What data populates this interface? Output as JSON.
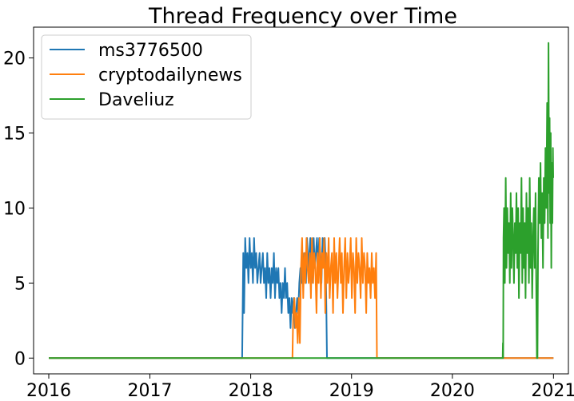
{
  "chart_data": {
    "type": "line",
    "title": "Thread Frequency over Time",
    "xlabel": "",
    "ylabel": "",
    "xlim": [
      "2015-11-07",
      "2021-02-24"
    ],
    "ylim": [
      -1.05,
      22.05
    ],
    "x_ticks": [
      "2016",
      "2017",
      "2018",
      "2019",
      "2020",
      "2021"
    ],
    "y_ticks": [
      "0",
      "5",
      "10",
      "15",
      "20"
    ],
    "grid": false,
    "legend_position": "top-left",
    "series": [
      {
        "name": "ms3776500",
        "color": "#1f77b4",
        "points": [
          [
            "2016-01-01",
            0
          ],
          [
            "2017-12-01",
            0
          ],
          [
            "2017-12-05",
            7
          ],
          [
            "2017-12-08",
            3
          ],
          [
            "2017-12-12",
            8
          ],
          [
            "2017-12-16",
            6
          ],
          [
            "2017-12-20",
            7
          ],
          [
            "2017-12-24",
            5
          ],
          [
            "2017-12-28",
            8
          ],
          [
            "2018-01-01",
            6
          ],
          [
            "2018-01-05",
            7
          ],
          [
            "2018-01-09",
            5
          ],
          [
            "2018-01-13",
            8
          ],
          [
            "2018-01-17",
            6
          ],
          [
            "2018-01-21",
            7
          ],
          [
            "2018-01-25",
            5
          ],
          [
            "2018-01-29",
            6
          ],
          [
            "2018-02-02",
            7
          ],
          [
            "2018-02-06",
            5
          ],
          [
            "2018-02-10",
            6
          ],
          [
            "2018-02-14",
            7
          ],
          [
            "2018-02-18",
            5
          ],
          [
            "2018-02-22",
            6
          ],
          [
            "2018-02-26",
            4
          ],
          [
            "2018-03-02",
            7
          ],
          [
            "2018-03-06",
            5
          ],
          [
            "2018-03-10",
            6
          ],
          [
            "2018-03-14",
            4
          ],
          [
            "2018-03-18",
            6
          ],
          [
            "2018-03-22",
            5
          ],
          [
            "2018-03-26",
            7
          ],
          [
            "2018-03-30",
            4
          ],
          [
            "2018-04-03",
            6
          ],
          [
            "2018-04-07",
            5
          ],
          [
            "2018-04-11",
            6
          ],
          [
            "2018-04-15",
            4
          ],
          [
            "2018-04-19",
            5
          ],
          [
            "2018-04-23",
            3
          ],
          [
            "2018-04-27",
            5
          ],
          [
            "2018-05-01",
            4
          ],
          [
            "2018-05-05",
            6
          ],
          [
            "2018-05-09",
            4
          ],
          [
            "2018-05-13",
            5
          ],
          [
            "2018-05-17",
            3
          ],
          [
            "2018-05-21",
            4
          ],
          [
            "2018-05-25",
            2
          ],
          [
            "2018-05-29",
            4
          ],
          [
            "2018-06-02",
            3
          ],
          [
            "2018-06-06",
            4
          ],
          [
            "2018-06-10",
            2
          ],
          [
            "2018-06-14",
            3
          ],
          [
            "2018-06-18",
            4
          ],
          [
            "2018-06-22",
            3
          ],
          [
            "2018-06-26",
            5
          ],
          [
            "2018-06-30",
            6
          ],
          [
            "2018-07-04",
            5
          ],
          [
            "2018-07-08",
            7
          ],
          [
            "2018-07-12",
            6
          ],
          [
            "2018-07-16",
            7
          ],
          [
            "2018-07-20",
            5
          ],
          [
            "2018-07-24",
            8
          ],
          [
            "2018-07-28",
            6
          ],
          [
            "2018-08-01",
            7
          ],
          [
            "2018-08-05",
            8
          ],
          [
            "2018-08-09",
            5
          ],
          [
            "2018-08-13",
            7
          ],
          [
            "2018-08-17",
            8
          ],
          [
            "2018-08-21",
            6
          ],
          [
            "2018-08-25",
            7
          ],
          [
            "2018-08-29",
            8
          ],
          [
            "2018-09-02",
            6
          ],
          [
            "2018-09-06",
            8
          ],
          [
            "2018-09-10",
            7
          ],
          [
            "2018-09-14",
            5
          ],
          [
            "2018-09-18",
            8
          ],
          [
            "2018-09-22",
            7
          ],
          [
            "2018-09-26",
            8
          ],
          [
            "2018-09-30",
            6
          ],
          [
            "2018-10-04",
            0
          ],
          [
            "2021-01-01",
            0
          ]
        ]
      },
      {
        "name": "cryptodailynews",
        "color": "#ff7f0e",
        "points": [
          [
            "2016-01-01",
            0
          ],
          [
            "2018-06-01",
            0
          ],
          [
            "2018-06-04",
            3
          ],
          [
            "2018-06-08",
            4
          ],
          [
            "2018-06-12",
            2
          ],
          [
            "2018-06-16",
            3
          ],
          [
            "2018-06-20",
            1
          ],
          [
            "2018-06-24",
            4
          ],
          [
            "2018-06-28",
            1
          ],
          [
            "2018-07-02",
            6
          ],
          [
            "2018-07-06",
            8
          ],
          [
            "2018-07-10",
            4
          ],
          [
            "2018-07-14",
            7
          ],
          [
            "2018-07-18",
            5
          ],
          [
            "2018-07-22",
            8
          ],
          [
            "2018-07-26",
            6
          ],
          [
            "2018-07-30",
            5
          ],
          [
            "2018-08-03",
            7
          ],
          [
            "2018-08-07",
            4
          ],
          [
            "2018-08-11",
            8
          ],
          [
            "2018-08-15",
            5
          ],
          [
            "2018-08-19",
            7
          ],
          [
            "2018-08-23",
            6
          ],
          [
            "2018-08-27",
            3
          ],
          [
            "2018-08-31",
            7
          ],
          [
            "2018-09-04",
            5
          ],
          [
            "2018-09-08",
            8
          ],
          [
            "2018-09-12",
            4
          ],
          [
            "2018-09-16",
            7
          ],
          [
            "2018-09-20",
            6
          ],
          [
            "2018-09-24",
            8
          ],
          [
            "2018-09-28",
            3
          ],
          [
            "2018-10-02",
            7
          ],
          [
            "2018-10-06",
            5
          ],
          [
            "2018-10-10",
            8
          ],
          [
            "2018-10-14",
            4
          ],
          [
            "2018-10-18",
            6
          ],
          [
            "2018-10-22",
            7
          ],
          [
            "2018-10-26",
            3
          ],
          [
            "2018-10-30",
            8
          ],
          [
            "2018-11-03",
            5
          ],
          [
            "2018-11-07",
            7
          ],
          [
            "2018-11-11",
            4
          ],
          [
            "2018-11-15",
            6
          ],
          [
            "2018-11-19",
            8
          ],
          [
            "2018-11-23",
            5
          ],
          [
            "2018-11-27",
            7
          ],
          [
            "2018-12-01",
            3
          ],
          [
            "2018-12-05",
            6
          ],
          [
            "2018-12-09",
            8
          ],
          [
            "2018-12-13",
            4
          ],
          [
            "2018-12-17",
            7
          ],
          [
            "2018-12-21",
            5
          ],
          [
            "2018-12-25",
            6
          ],
          [
            "2018-12-29",
            8
          ],
          [
            "2019-01-02",
            4
          ],
          [
            "2019-01-06",
            7
          ],
          [
            "2019-01-10",
            6
          ],
          [
            "2019-01-14",
            3
          ],
          [
            "2019-01-18",
            8
          ],
          [
            "2019-01-22",
            5
          ],
          [
            "2019-01-26",
            7
          ],
          [
            "2019-01-30",
            6
          ],
          [
            "2019-02-03",
            4
          ],
          [
            "2019-02-07",
            8
          ],
          [
            "2019-02-11",
            5
          ],
          [
            "2019-02-15",
            7
          ],
          [
            "2019-02-19",
            6
          ],
          [
            "2019-02-23",
            3
          ],
          [
            "2019-02-27",
            7
          ],
          [
            "2019-03-03",
            5
          ],
          [
            "2019-03-07",
            6
          ],
          [
            "2019-03-11",
            4
          ],
          [
            "2019-03-15",
            7
          ],
          [
            "2019-03-19",
            5
          ],
          [
            "2019-03-23",
            6
          ],
          [
            "2019-03-27",
            4
          ],
          [
            "2019-03-31",
            7
          ],
          [
            "2019-04-03",
            0
          ],
          [
            "2021-01-01",
            0
          ]
        ]
      },
      {
        "name": "Daveliuz",
        "color": "#2ca02c",
        "points": [
          [
            "2016-01-01",
            0
          ],
          [
            "2020-07-01",
            0
          ],
          [
            "2020-07-02",
            1
          ],
          [
            "2020-07-03",
            0
          ],
          [
            "2020-07-04",
            8
          ],
          [
            "2020-07-06",
            10
          ],
          [
            "2020-07-09",
            5
          ],
          [
            "2020-07-12",
            12
          ],
          [
            "2020-07-15",
            6
          ],
          [
            "2020-07-18",
            10
          ],
          [
            "2020-07-21",
            7
          ],
          [
            "2020-07-24",
            9
          ],
          [
            "2020-07-27",
            5
          ],
          [
            "2020-07-30",
            11
          ],
          [
            "2020-08-02",
            6
          ],
          [
            "2020-08-05",
            10
          ],
          [
            "2020-08-08",
            8
          ],
          [
            "2020-08-11",
            5
          ],
          [
            "2020-08-14",
            9
          ],
          [
            "2020-08-17",
            7
          ],
          [
            "2020-08-20",
            11
          ],
          [
            "2020-08-23",
            6
          ],
          [
            "2020-08-26",
            10
          ],
          [
            "2020-08-29",
            4
          ],
          [
            "2020-09-01",
            9
          ],
          [
            "2020-09-04",
            7
          ],
          [
            "2020-09-07",
            12
          ],
          [
            "2020-09-10",
            5
          ],
          [
            "2020-09-13",
            10
          ],
          [
            "2020-09-16",
            6
          ],
          [
            "2020-09-19",
            9
          ],
          [
            "2020-09-22",
            4
          ],
          [
            "2020-09-25",
            11
          ],
          [
            "2020-09-28",
            7
          ],
          [
            "2020-10-01",
            10
          ],
          [
            "2020-10-04",
            5
          ],
          [
            "2020-10-07",
            12
          ],
          [
            "2020-10-10",
            6
          ],
          [
            "2020-10-13",
            9
          ],
          [
            "2020-10-16",
            4
          ],
          [
            "2020-10-19",
            8
          ],
          [
            "2020-10-22",
            10
          ],
          [
            "2020-10-25",
            6
          ],
          [
            "2020-10-28",
            11
          ],
          [
            "2020-10-31",
            4
          ],
          [
            "2020-11-02",
            0
          ],
          [
            "2020-11-04",
            0
          ],
          [
            "2020-11-06",
            7
          ],
          [
            "2020-11-09",
            12
          ],
          [
            "2020-11-12",
            9
          ],
          [
            "2020-11-15",
            13
          ],
          [
            "2020-11-18",
            8
          ],
          [
            "2020-11-21",
            11
          ],
          [
            "2020-11-24",
            6
          ],
          [
            "2020-11-27",
            12
          ],
          [
            "2020-11-30",
            9
          ],
          [
            "2020-12-03",
            14
          ],
          [
            "2020-12-06",
            10
          ],
          [
            "2020-12-09",
            17
          ],
          [
            "2020-12-12",
            8
          ],
          [
            "2020-12-14",
            21
          ],
          [
            "2020-12-16",
            11
          ],
          [
            "2020-12-18",
            16
          ],
          [
            "2020-12-20",
            9
          ],
          [
            "2020-12-22",
            15
          ],
          [
            "2020-12-24",
            6
          ],
          [
            "2020-12-26",
            13
          ],
          [
            "2020-12-28",
            9
          ],
          [
            "2020-12-30",
            14
          ],
          [
            "2020-12-31",
            12
          ]
        ]
      }
    ]
  }
}
